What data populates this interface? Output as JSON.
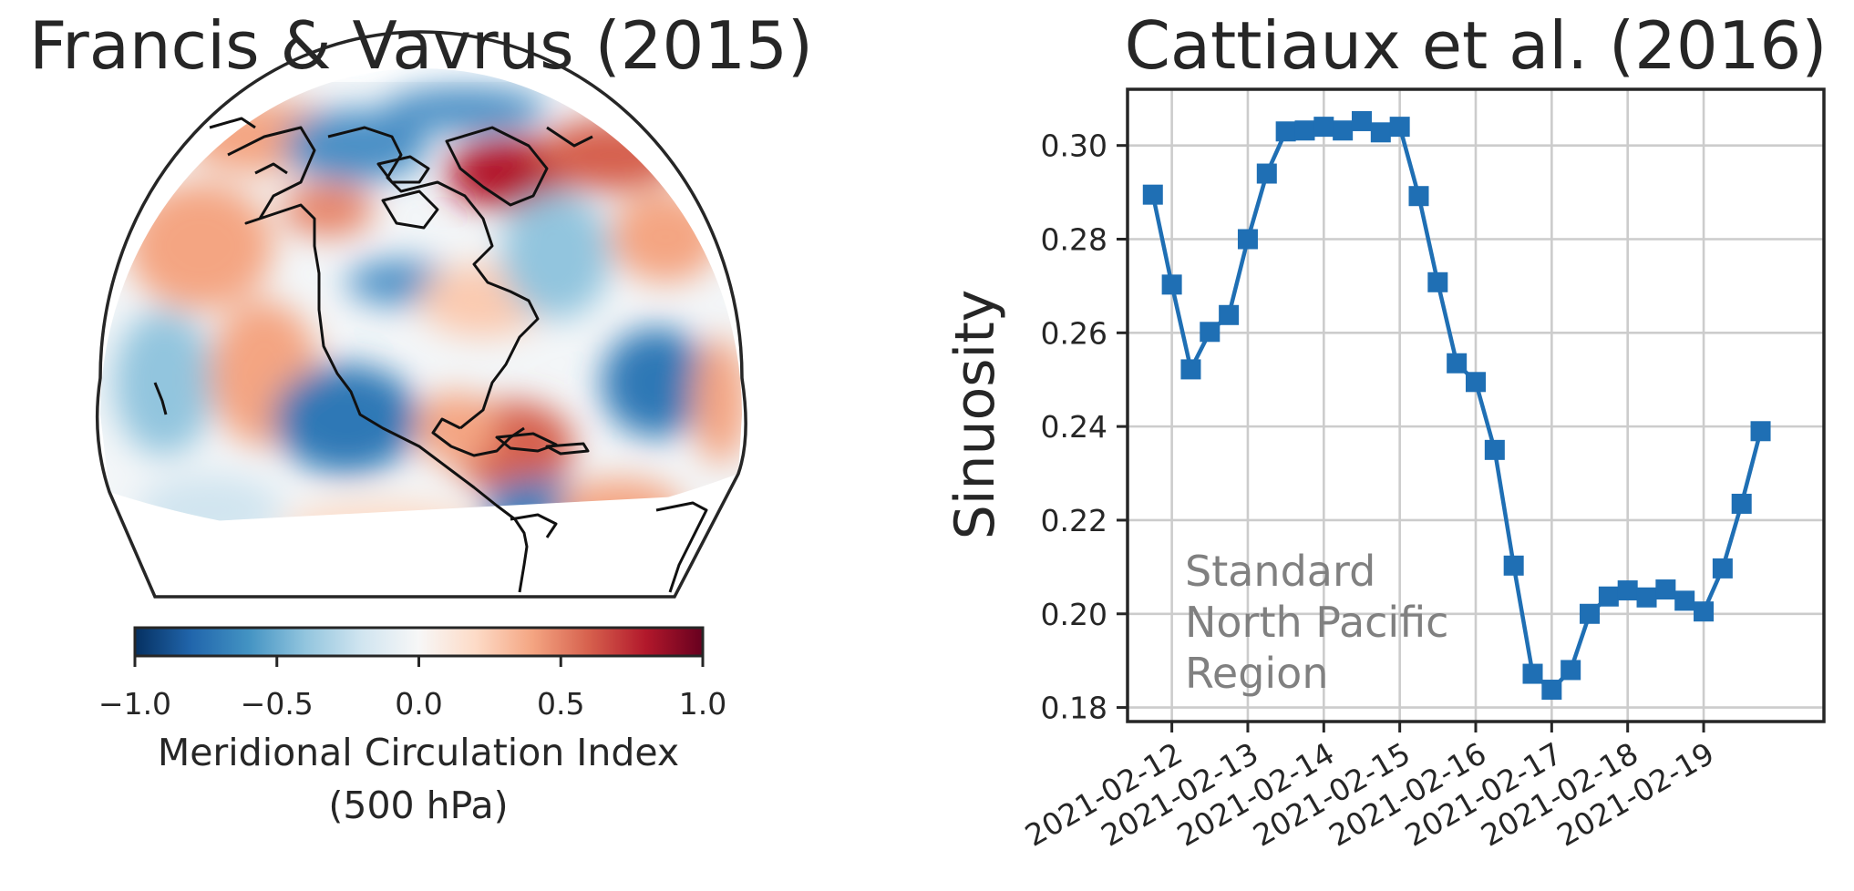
{
  "colors": {
    "line": "#1f6fb4",
    "grid": "#cccccc",
    "annotation": "#808080",
    "cmap_neg": "#053061",
    "cmap_mid": "#f7f7f7",
    "cmap_pos": "#67001f"
  },
  "left_panel": {
    "title": "Francis & Vavrus (2015)",
    "map_description_icon": "north-america-orthographic-globe",
    "colorbar": {
      "ticks": [
        "−1.0",
        "−0.5",
        "0.0",
        "0.5",
        "1.0"
      ],
      "tick_values": [
        -1.0,
        -0.5,
        0.0,
        0.5,
        1.0
      ],
      "label_line1": "Meridional Circulation Index",
      "label_line2": "(500 hPa)",
      "range": [
        -1.0,
        1.0
      ],
      "colormap": "RdBu_r"
    }
  },
  "chart_data": {
    "type": "line",
    "title": "Cattiaux et al. (2016)",
    "ylabel": "Sinuosity",
    "xlabel": "",
    "annotation_lines": [
      "Standard",
      "North Pacific",
      "Region"
    ],
    "x_tick_labels": [
      "2021-02-12",
      "2021-02-13",
      "2021-02-14",
      "2021-02-15",
      "2021-02-16",
      "2021-02-17",
      "2021-02-18",
      "2021-02-19"
    ],
    "y_tick_labels": [
      "0.18",
      "0.20",
      "0.22",
      "0.24",
      "0.26",
      "0.28",
      "0.30"
    ],
    "ylim": [
      0.177,
      0.312
    ],
    "xlim": [
      "2021-02-11T10:00",
      "2021-02-20T14:00"
    ],
    "grid": true,
    "marker": "square",
    "x": [
      "2021-02-11T18:00",
      "2021-02-12T00:00",
      "2021-02-12T06:00",
      "2021-02-12T12:00",
      "2021-02-12T18:00",
      "2021-02-13T00:00",
      "2021-02-13T06:00",
      "2021-02-13T12:00",
      "2021-02-13T18:00",
      "2021-02-14T00:00",
      "2021-02-14T06:00",
      "2021-02-14T12:00",
      "2021-02-14T18:00",
      "2021-02-15T00:00",
      "2021-02-15T06:00",
      "2021-02-15T12:00",
      "2021-02-15T18:00",
      "2021-02-16T00:00",
      "2021-02-16T06:00",
      "2021-02-16T12:00",
      "2021-02-16T18:00",
      "2021-02-17T00:00",
      "2021-02-17T06:00",
      "2021-02-17T12:00",
      "2021-02-17T18:00",
      "2021-02-18T00:00",
      "2021-02-18T06:00",
      "2021-02-18T12:00",
      "2021-02-18T18:00",
      "2021-02-19T00:00",
      "2021-02-19T06:00",
      "2021-02-19T12:00",
      "2021-02-19T18:00"
    ],
    "values": [
      0.2895,
      0.2703,
      0.2522,
      0.2602,
      0.2638,
      0.28,
      0.294,
      0.303,
      0.3032,
      0.304,
      0.3032,
      0.3052,
      0.3028,
      0.304,
      0.2892,
      0.2708,
      0.2535,
      0.2495,
      0.235,
      0.2103,
      0.1872,
      0.1838,
      0.188,
      0.2,
      0.2037,
      0.205,
      0.2035,
      0.2052,
      0.2028,
      0.2005,
      0.2097,
      0.2235,
      0.239
    ]
  }
}
